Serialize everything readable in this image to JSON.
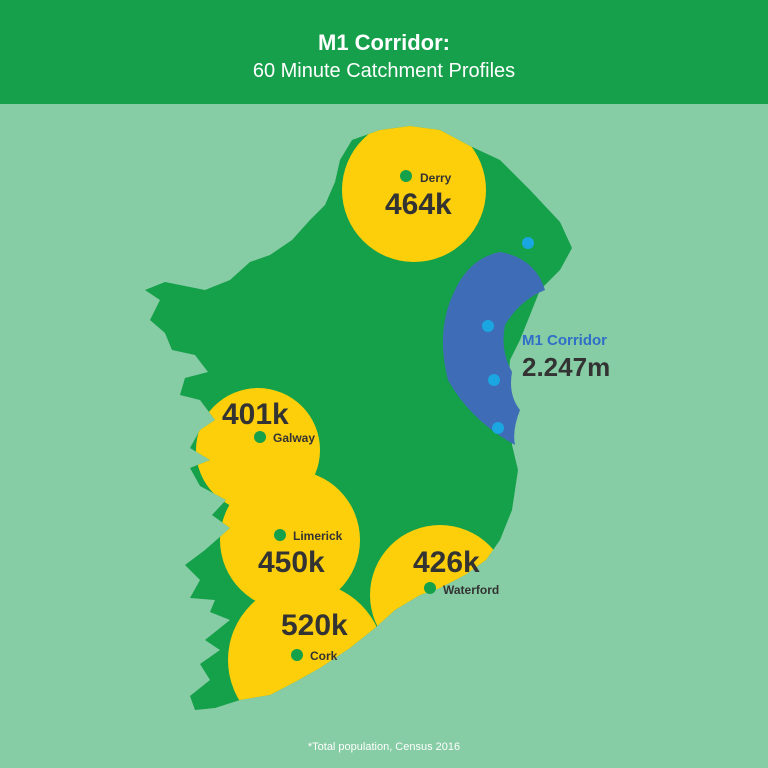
{
  "header": {
    "title": "M1 Corridor:",
    "subtitle": "60 Minute Catchment Profiles"
  },
  "colors": {
    "header": "#16a04b",
    "sea": "#86cca4",
    "land": "#15a04a",
    "catchment": "#fdcf0b",
    "corridor": "#3f6cb7",
    "dot_city": "#15a04a",
    "dot_corridor": "#1aa6e0"
  },
  "catchments": [
    {
      "city": "Derry",
      "population": "464k"
    },
    {
      "city": "Galway",
      "population": "401k"
    },
    {
      "city": "Limerick",
      "population": "450k"
    },
    {
      "city": "Waterford",
      "population": "426k"
    },
    {
      "city": "Cork",
      "population": "520k"
    }
  ],
  "corridor": {
    "name": "M1 Corridor",
    "population": "2.247m"
  },
  "footer": {
    "note": "*Total population, Census 2016"
  }
}
